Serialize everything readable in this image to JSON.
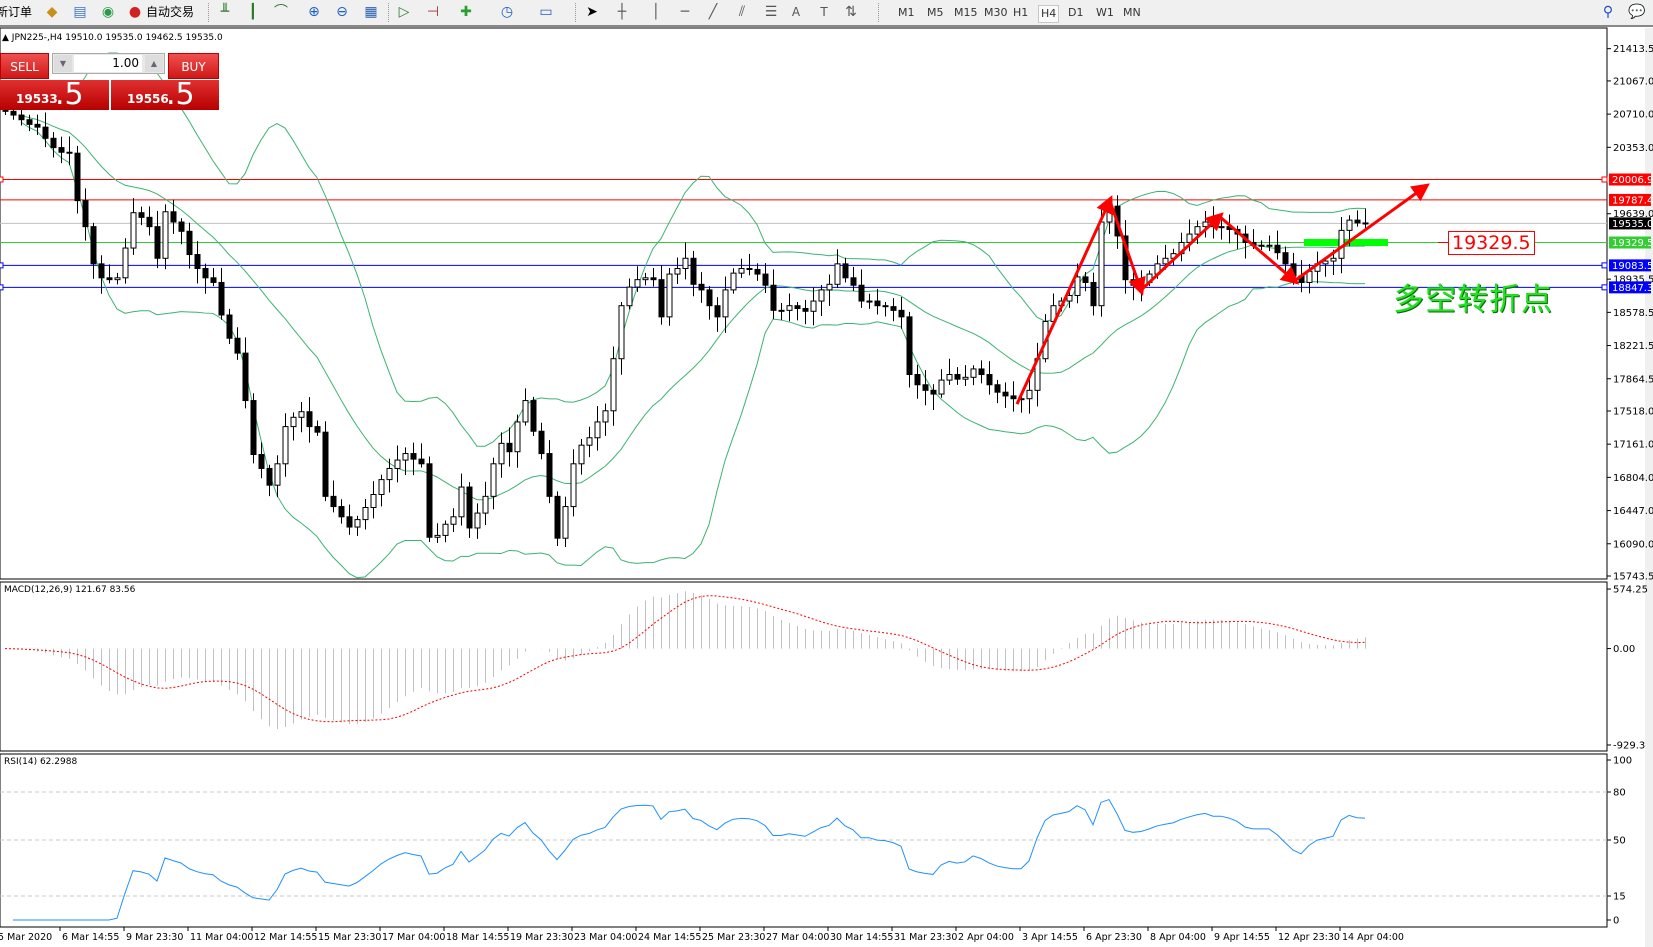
{
  "toolbar": {
    "new_order": "新订单",
    "auto_trading": "自动交易",
    "timeframes": [
      "M1",
      "M5",
      "M15",
      "M30",
      "H1",
      "H4",
      "D1",
      "W1",
      "MN"
    ],
    "active_timeframe": "H4"
  },
  "chart_header": {
    "symbol": "JPN225-,H4",
    "ohlc": "19510.0 19535.0 19462.5 19535.0"
  },
  "one_click": {
    "sell_label": "SELL",
    "buy_label": "BUY",
    "lot": "1.00",
    "sell_price_main": "19533",
    "sell_price_frac": ".5",
    "buy_price_main": "19556",
    "buy_price_frac": ".5"
  },
  "annotation": {
    "level_label": "19329.5",
    "pivot_text": "多空转折点"
  },
  "price_axis": {
    "ticks": [
      "21413.5",
      "21067.0",
      "20710.0",
      "20353.0",
      "19639.0",
      "18935.5",
      "18578.5",
      "18221.5",
      "17864.5",
      "17518.0",
      "17161.0",
      "16804.0",
      "16447.0",
      "16090.0",
      "15743.5"
    ],
    "tags": [
      {
        "value": "20006.9",
        "color": "#ff0000"
      },
      {
        "value": "19787.4",
        "color": "#ff0000"
      },
      {
        "value": "19535.0",
        "color": "#000000"
      },
      {
        "value": "19329.5",
        "color": "#32cd32"
      },
      {
        "value": "19083.5",
        "color": "#0000ff"
      },
      {
        "value": "18847.3",
        "color": "#0000ff"
      }
    ]
  },
  "macd": {
    "label": "MACD(12,26,9) 121.67 83.56",
    "axis": [
      "574.25",
      "0.00",
      "-929.3"
    ]
  },
  "rsi": {
    "label": "RSI(14) 62.2988",
    "axis": [
      "100",
      "80",
      "50",
      "15",
      "0"
    ]
  },
  "time_axis": [
    "5 Mar 2020",
    "6 Mar 14:55",
    "9 Mar 23:30",
    "11 Mar 04:00",
    "12 Mar 14:55",
    "15 Mar 23:30",
    "17 Mar 04:00",
    "18 Mar 14:55",
    "19 Mar 23:30",
    "23 Mar 04:00",
    "24 Mar 14:55",
    "25 Mar 23:30",
    "27 Mar 04:00",
    "30 Mar 14:55",
    "31 Mar 23:30",
    "2 Apr 04:00",
    "3 Apr 14:55",
    "6 Apr 23:30",
    "8 Apr 04:00",
    "9 Apr 14:55",
    "12 Apr 23:30",
    "14 Apr 04:00"
  ],
  "colors": {
    "bollinger": "#3cb371",
    "macd_hist": "#c0c0c0",
    "macd_signal": "#ff0000",
    "rsi": "#1e90ff",
    "arrows": "#ff0000",
    "pivot_zone": "#00ff00"
  },
  "chart_data": {
    "type": "candlestick",
    "symbol": "JPN225-",
    "timeframe": "H4",
    "price_range": [
      15743.5,
      21413.5
    ],
    "indicators": [
      "Bollinger Bands(20,2)",
      "MACD(12,26,9)",
      "RSI(14)"
    ],
    "horizontal_lines": [
      {
        "price": 20006.9,
        "color": "#ff0000"
      },
      {
        "price": 19787.4,
        "color": "#ff0000"
      },
      {
        "price": 19535.0,
        "color": "#c0c0c0"
      },
      {
        "price": 19329.5,
        "color": "#32cd32"
      },
      {
        "price": 19083.5,
        "color": "#0000ff"
      },
      {
        "price": 18847.3,
        "color": "#0000ff"
      }
    ],
    "closes": [
      20740,
      20700,
      20650,
      20600,
      20570,
      20450,
      20350,
      20300,
      20290,
      19780,
      19500,
      19100,
      18950,
      18930,
      18950,
      19270,
      19650,
      19600,
      19500,
      19160,
      19660,
      19550,
      19450,
      19200,
      19050,
      18950,
      18900,
      18550,
      18300,
      18140,
      17630,
      17050,
      16900,
      16720,
      16950,
      17350,
      17450,
      17510,
      17350,
      17290,
      16600,
      16490,
      16380,
      16270,
      16350,
      16480,
      16620,
      16780,
      16900,
      16990,
      17060,
      17000,
      16950,
      16160,
      16180,
      16300,
      16380,
      16700,
      16260,
      16420,
      16600,
      16950,
      17170,
      17080,
      17400,
      17630,
      17300,
      17060,
      16600,
      16150,
      16490,
      16950,
      17150,
      17230,
      17400,
      17520,
      18080,
      18650,
      18850,
      18930,
      18950,
      18930,
      18530,
      18990,
      19050,
      19160,
      18880,
      18820,
      18650,
      18530,
      18820,
      19000,
      19050,
      19040,
      18990,
      18870,
      18600,
      18600,
      18650,
      18620,
      18590,
      18700,
      18820,
      18880,
      19100,
      18950,
      18870,
      18700,
      18700,
      18650,
      18640,
      18600,
      18530,
      17910,
      17800,
      17740,
      17700,
      17850,
      17910,
      17860,
      17880,
      17970,
      17910,
      17800,
      17720,
      17680,
      17650,
      17650,
      17740,
      18080,
      18480,
      18650,
      18700,
      18760,
      18960,
      18900,
      18650,
      19550,
      19720,
      19400,
      18930,
      18870,
      18900,
      18990,
      19100,
      19160,
      19210,
      19330,
      19420,
      19500,
      19550,
      19500,
      19500,
      19470,
      19420,
      19330,
      19300,
      19300,
      19300,
      19220,
      19100,
      18970,
      18900,
      19020,
      19100,
      19130,
      19160,
      19460,
      19570,
      19540,
      19535
    ]
  }
}
